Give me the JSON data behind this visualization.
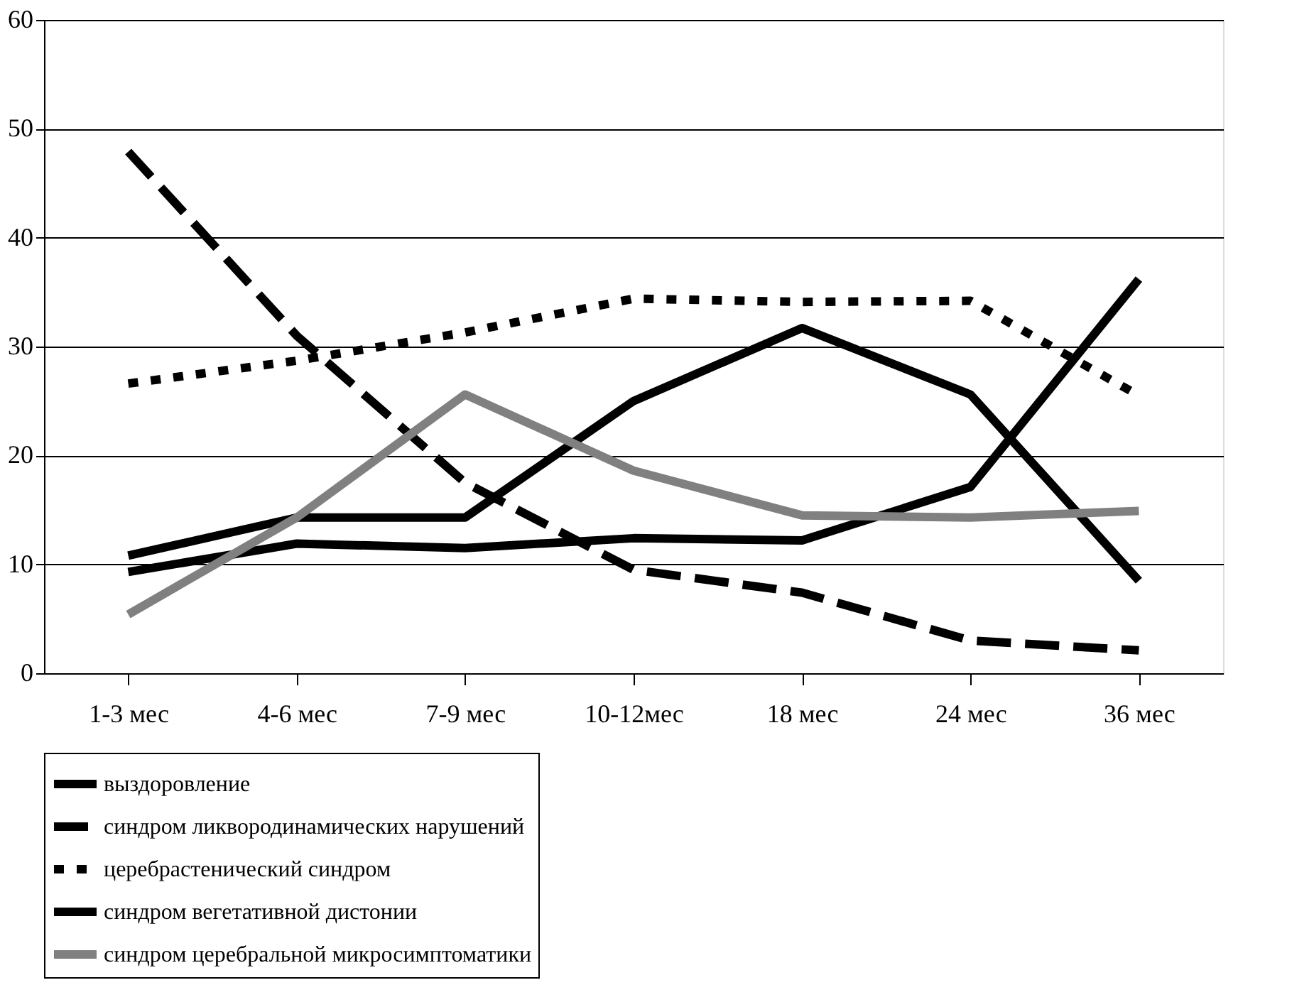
{
  "chart_data": {
    "type": "line",
    "categories": [
      "1-3 мес",
      "4-6 мес",
      "7-9 мес",
      "10-12мес",
      "18 мес",
      "24 мес",
      "36 мес"
    ],
    "ylim": [
      0,
      60
    ],
    "yticks": [
      0,
      10,
      20,
      30,
      40,
      50,
      60
    ],
    "grid": "y",
    "legend": "bottom",
    "marker": "none",
    "series": [
      {
        "name": "выздоровление",
        "color": "#000000",
        "line_style": "solid",
        "values": [
          9.3,
          11.9,
          11.5,
          12.4,
          12.2,
          17.1,
          36.2
        ]
      },
      {
        "name": "синдром ликвородинамических нарушений",
        "color": "#000000",
        "line_style": "dashed",
        "values": [
          47.9,
          31,
          17.5,
          9.5,
          7.4,
          3,
          2.1
        ]
      },
      {
        "name": "церебрастенический синдром",
        "color": "#000000",
        "line_style": "dotted",
        "values": [
          26.6,
          28.7,
          31.3,
          34.4,
          34.1,
          34.2,
          25.5
        ]
      },
      {
        "name": "синдром вегетативной дистонии",
        "color": "#000000",
        "line_style": "solid",
        "values": [
          10.8,
          14.3,
          14.3,
          25,
          31.7,
          25.6,
          8.5
        ]
      },
      {
        "name": "синдром церебральной микросимптоматики",
        "color": "#808080",
        "line_style": "solid",
        "values": [
          5.4,
          14.3,
          25.6,
          18.6,
          14.5,
          14.3,
          14.9
        ]
      }
    ]
  }
}
